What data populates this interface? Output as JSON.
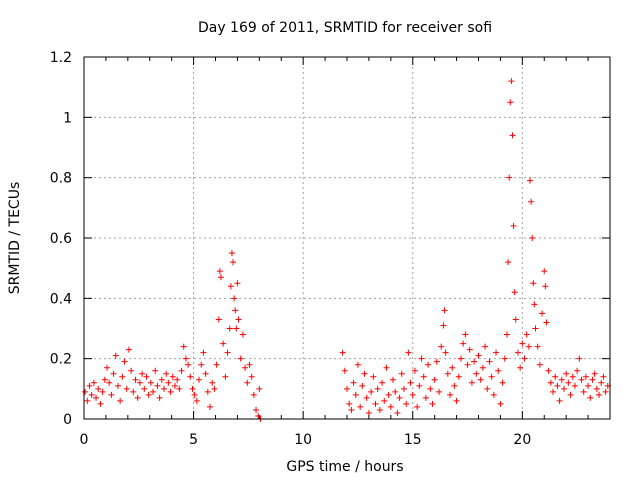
{
  "chart_data": {
    "type": "scatter",
    "title": "Day 169 of 2011, SRMTID for receiver sofi",
    "xlabel": "GPS time / hours",
    "ylabel": "SRMTID / TECUs",
    "xlim": [
      0,
      24
    ],
    "ylim": [
      0,
      1.2
    ],
    "x_ticks": [
      0,
      5,
      10,
      15,
      20
    ],
    "x_tick_labels": [
      "0",
      "5",
      "10",
      "15",
      "20"
    ],
    "y_ticks": [
      0,
      0.2,
      0.4,
      0.6,
      0.8,
      1,
      1.2
    ],
    "y_tick_labels": [
      "0",
      "0.2",
      "0.4",
      "0.6",
      "0.8",
      "1",
      "1.2"
    ],
    "grid": true,
    "marker": "+",
    "color": "#ff0000",
    "series": [
      {
        "name": "SRMTID",
        "points": [
          [
            0.05,
            0.09
          ],
          [
            0.15,
            0.06
          ],
          [
            0.25,
            0.11
          ],
          [
            0.35,
            0.08
          ],
          [
            0.45,
            0.12
          ],
          [
            0.55,
            0.07
          ],
          [
            0.65,
            0.1
          ],
          [
            0.75,
            0.05
          ],
          [
            0.85,
            0.09
          ],
          [
            0.95,
            0.13
          ],
          [
            1.05,
            0.17
          ],
          [
            1.15,
            0.12
          ],
          [
            1.25,
            0.08
          ],
          [
            1.35,
            0.15
          ],
          [
            1.45,
            0.21
          ],
          [
            1.55,
            0.11
          ],
          [
            1.65,
            0.06
          ],
          [
            1.75,
            0.14
          ],
          [
            1.85,
            0.19
          ],
          [
            1.95,
            0.1
          ],
          [
            2.05,
            0.23
          ],
          [
            2.15,
            0.16
          ],
          [
            2.25,
            0.09
          ],
          [
            2.35,
            0.13
          ],
          [
            2.45,
            0.07
          ],
          [
            2.55,
            0.12
          ],
          [
            2.65,
            0.15
          ],
          [
            2.75,
            0.1
          ],
          [
            2.85,
            0.14
          ],
          [
            2.95,
            0.08
          ],
          [
            3.05,
            0.12
          ],
          [
            3.15,
            0.09
          ],
          [
            3.25,
            0.16
          ],
          [
            3.35,
            0.11
          ],
          [
            3.45,
            0.07
          ],
          [
            3.55,
            0.13
          ],
          [
            3.65,
            0.1
          ],
          [
            3.75,
            0.15
          ],
          [
            3.85,
            0.12
          ],
          [
            3.95,
            0.09
          ],
          [
            4.05,
            0.14
          ],
          [
            4.15,
            0.11
          ],
          [
            4.25,
            0.13
          ],
          [
            4.35,
            0.1
          ],
          [
            4.45,
            0.16
          ],
          [
            4.55,
            0.24
          ],
          [
            4.65,
            0.2
          ],
          [
            4.75,
            0.18
          ],
          [
            4.85,
            0.14
          ],
          [
            4.95,
            0.1
          ],
          [
            5.05,
            0.08
          ],
          [
            5.15,
            0.06
          ],
          [
            5.25,
            0.13
          ],
          [
            5.35,
            0.18
          ],
          [
            5.45,
            0.22
          ],
          [
            5.55,
            0.15
          ],
          [
            5.65,
            0.09
          ],
          [
            5.75,
            0.04
          ],
          [
            5.85,
            0.12
          ],
          [
            5.95,
            0.1
          ],
          [
            6.05,
            0.18
          ],
          [
            6.15,
            0.33
          ],
          [
            6.2,
            0.49
          ],
          [
            6.25,
            0.47
          ],
          [
            6.35,
            0.25
          ],
          [
            6.45,
            0.14
          ],
          [
            6.55,
            0.22
          ],
          [
            6.65,
            0.3
          ],
          [
            6.7,
            0.44
          ],
          [
            6.75,
            0.55
          ],
          [
            6.8,
            0.52
          ],
          [
            6.85,
            0.4
          ],
          [
            6.9,
            0.36
          ],
          [
            6.95,
            0.3
          ],
          [
            7.0,
            0.45
          ],
          [
            7.05,
            0.33
          ],
          [
            7.15,
            0.2
          ],
          [
            7.25,
            0.28
          ],
          [
            7.35,
            0.17
          ],
          [
            7.45,
            0.12
          ],
          [
            7.55,
            0.18
          ],
          [
            7.65,
            0.14
          ],
          [
            7.75,
            0.08
          ],
          [
            7.85,
            0.03
          ],
          [
            7.95,
            0.01
          ],
          [
            8.0,
            0.1
          ],
          [
            8.05,
            0.0
          ],
          [
            11.8,
            0.22
          ],
          [
            11.9,
            0.16
          ],
          [
            12.0,
            0.1
          ],
          [
            12.1,
            0.05
          ],
          [
            12.2,
            0.03
          ],
          [
            12.3,
            0.12
          ],
          [
            12.4,
            0.08
          ],
          [
            12.5,
            0.18
          ],
          [
            12.6,
            0.04
          ],
          [
            12.7,
            0.11
          ],
          [
            12.8,
            0.15
          ],
          [
            12.9,
            0.07
          ],
          [
            13.0,
            0.02
          ],
          [
            13.1,
            0.09
          ],
          [
            13.2,
            0.14
          ],
          [
            13.3,
            0.05
          ],
          [
            13.4,
            0.1
          ],
          [
            13.5,
            0.03
          ],
          [
            13.6,
            0.12
          ],
          [
            13.7,
            0.06
          ],
          [
            13.8,
            0.17
          ],
          [
            13.9,
            0.08
          ],
          [
            14.0,
            0.04
          ],
          [
            14.1,
            0.13
          ],
          [
            14.2,
            0.09
          ],
          [
            14.3,
            0.02
          ],
          [
            14.4,
            0.07
          ],
          [
            14.5,
            0.15
          ],
          [
            14.6,
            0.1
          ],
          [
            14.7,
            0.05
          ],
          [
            14.8,
            0.22
          ],
          [
            14.9,
            0.12
          ],
          [
            15.0,
            0.08
          ],
          [
            15.1,
            0.16
          ],
          [
            15.2,
            0.04
          ],
          [
            15.3,
            0.11
          ],
          [
            15.4,
            0.2
          ],
          [
            15.5,
            0.14
          ],
          [
            15.6,
            0.07
          ],
          [
            15.7,
            0.18
          ],
          [
            15.8,
            0.1
          ],
          [
            15.9,
            0.05
          ],
          [
            16.0,
            0.13
          ],
          [
            16.1,
            0.19
          ],
          [
            16.2,
            0.09
          ],
          [
            16.3,
            0.24
          ],
          [
            16.4,
            0.31
          ],
          [
            16.45,
            0.36
          ],
          [
            16.5,
            0.22
          ],
          [
            16.6,
            0.15
          ],
          [
            16.7,
            0.08
          ],
          [
            16.8,
            0.17
          ],
          [
            16.9,
            0.11
          ],
          [
            17.0,
            0.06
          ],
          [
            17.1,
            0.14
          ],
          [
            17.2,
            0.2
          ],
          [
            17.3,
            0.25
          ],
          [
            17.4,
            0.28
          ],
          [
            17.5,
            0.18
          ],
          [
            17.6,
            0.23
          ],
          [
            17.7,
            0.12
          ],
          [
            17.8,
            0.19
          ],
          [
            17.9,
            0.15
          ],
          [
            18.0,
            0.21
          ],
          [
            18.1,
            0.13
          ],
          [
            18.2,
            0.17
          ],
          [
            18.3,
            0.24
          ],
          [
            18.4,
            0.1
          ],
          [
            18.5,
            0.19
          ],
          [
            18.6,
            0.14
          ],
          [
            18.7,
            0.08
          ],
          [
            18.8,
            0.22
          ],
          [
            18.9,
            0.16
          ],
          [
            19.0,
            0.05
          ],
          [
            19.1,
            0.12
          ],
          [
            19.2,
            0.2
          ],
          [
            19.3,
            0.28
          ],
          [
            19.35,
            0.52
          ],
          [
            19.4,
            0.8
          ],
          [
            19.45,
            1.05
          ],
          [
            19.5,
            1.12
          ],
          [
            19.55,
            0.94
          ],
          [
            19.6,
            0.64
          ],
          [
            19.65,
            0.42
          ],
          [
            19.7,
            0.33
          ],
          [
            19.8,
            0.22
          ],
          [
            19.9,
            0.17
          ],
          [
            20.0,
            0.25
          ],
          [
            20.1,
            0.2
          ],
          [
            20.2,
            0.28
          ],
          [
            20.3,
            0.24
          ],
          [
            20.35,
            0.79
          ],
          [
            20.4,
            0.72
          ],
          [
            20.45,
            0.6
          ],
          [
            20.5,
            0.45
          ],
          [
            20.55,
            0.38
          ],
          [
            20.6,
            0.3
          ],
          [
            20.7,
            0.24
          ],
          [
            20.8,
            0.18
          ],
          [
            20.9,
            0.35
          ],
          [
            21.0,
            0.49
          ],
          [
            21.05,
            0.44
          ],
          [
            21.1,
            0.32
          ],
          [
            21.2,
            0.16
          ],
          [
            21.3,
            0.12
          ],
          [
            21.4,
            0.09
          ],
          [
            21.5,
            0.14
          ],
          [
            21.6,
            0.11
          ],
          [
            21.7,
            0.06
          ],
          [
            21.8,
            0.13
          ],
          [
            21.9,
            0.1
          ],
          [
            22.0,
            0.15
          ],
          [
            22.1,
            0.12
          ],
          [
            22.2,
            0.08
          ],
          [
            22.3,
            0.14
          ],
          [
            22.4,
            0.11
          ],
          [
            22.5,
            0.16
          ],
          [
            22.6,
            0.2
          ],
          [
            22.7,
            0.13
          ],
          [
            22.8,
            0.09
          ],
          [
            22.9,
            0.14
          ],
          [
            23.0,
            0.11
          ],
          [
            23.1,
            0.07
          ],
          [
            23.2,
            0.13
          ],
          [
            23.3,
            0.15
          ],
          [
            23.4,
            0.1
          ],
          [
            23.5,
            0.08
          ],
          [
            23.6,
            0.12
          ],
          [
            23.7,
            0.14
          ],
          [
            23.8,
            0.09
          ],
          [
            23.9,
            0.11
          ]
        ]
      }
    ]
  }
}
